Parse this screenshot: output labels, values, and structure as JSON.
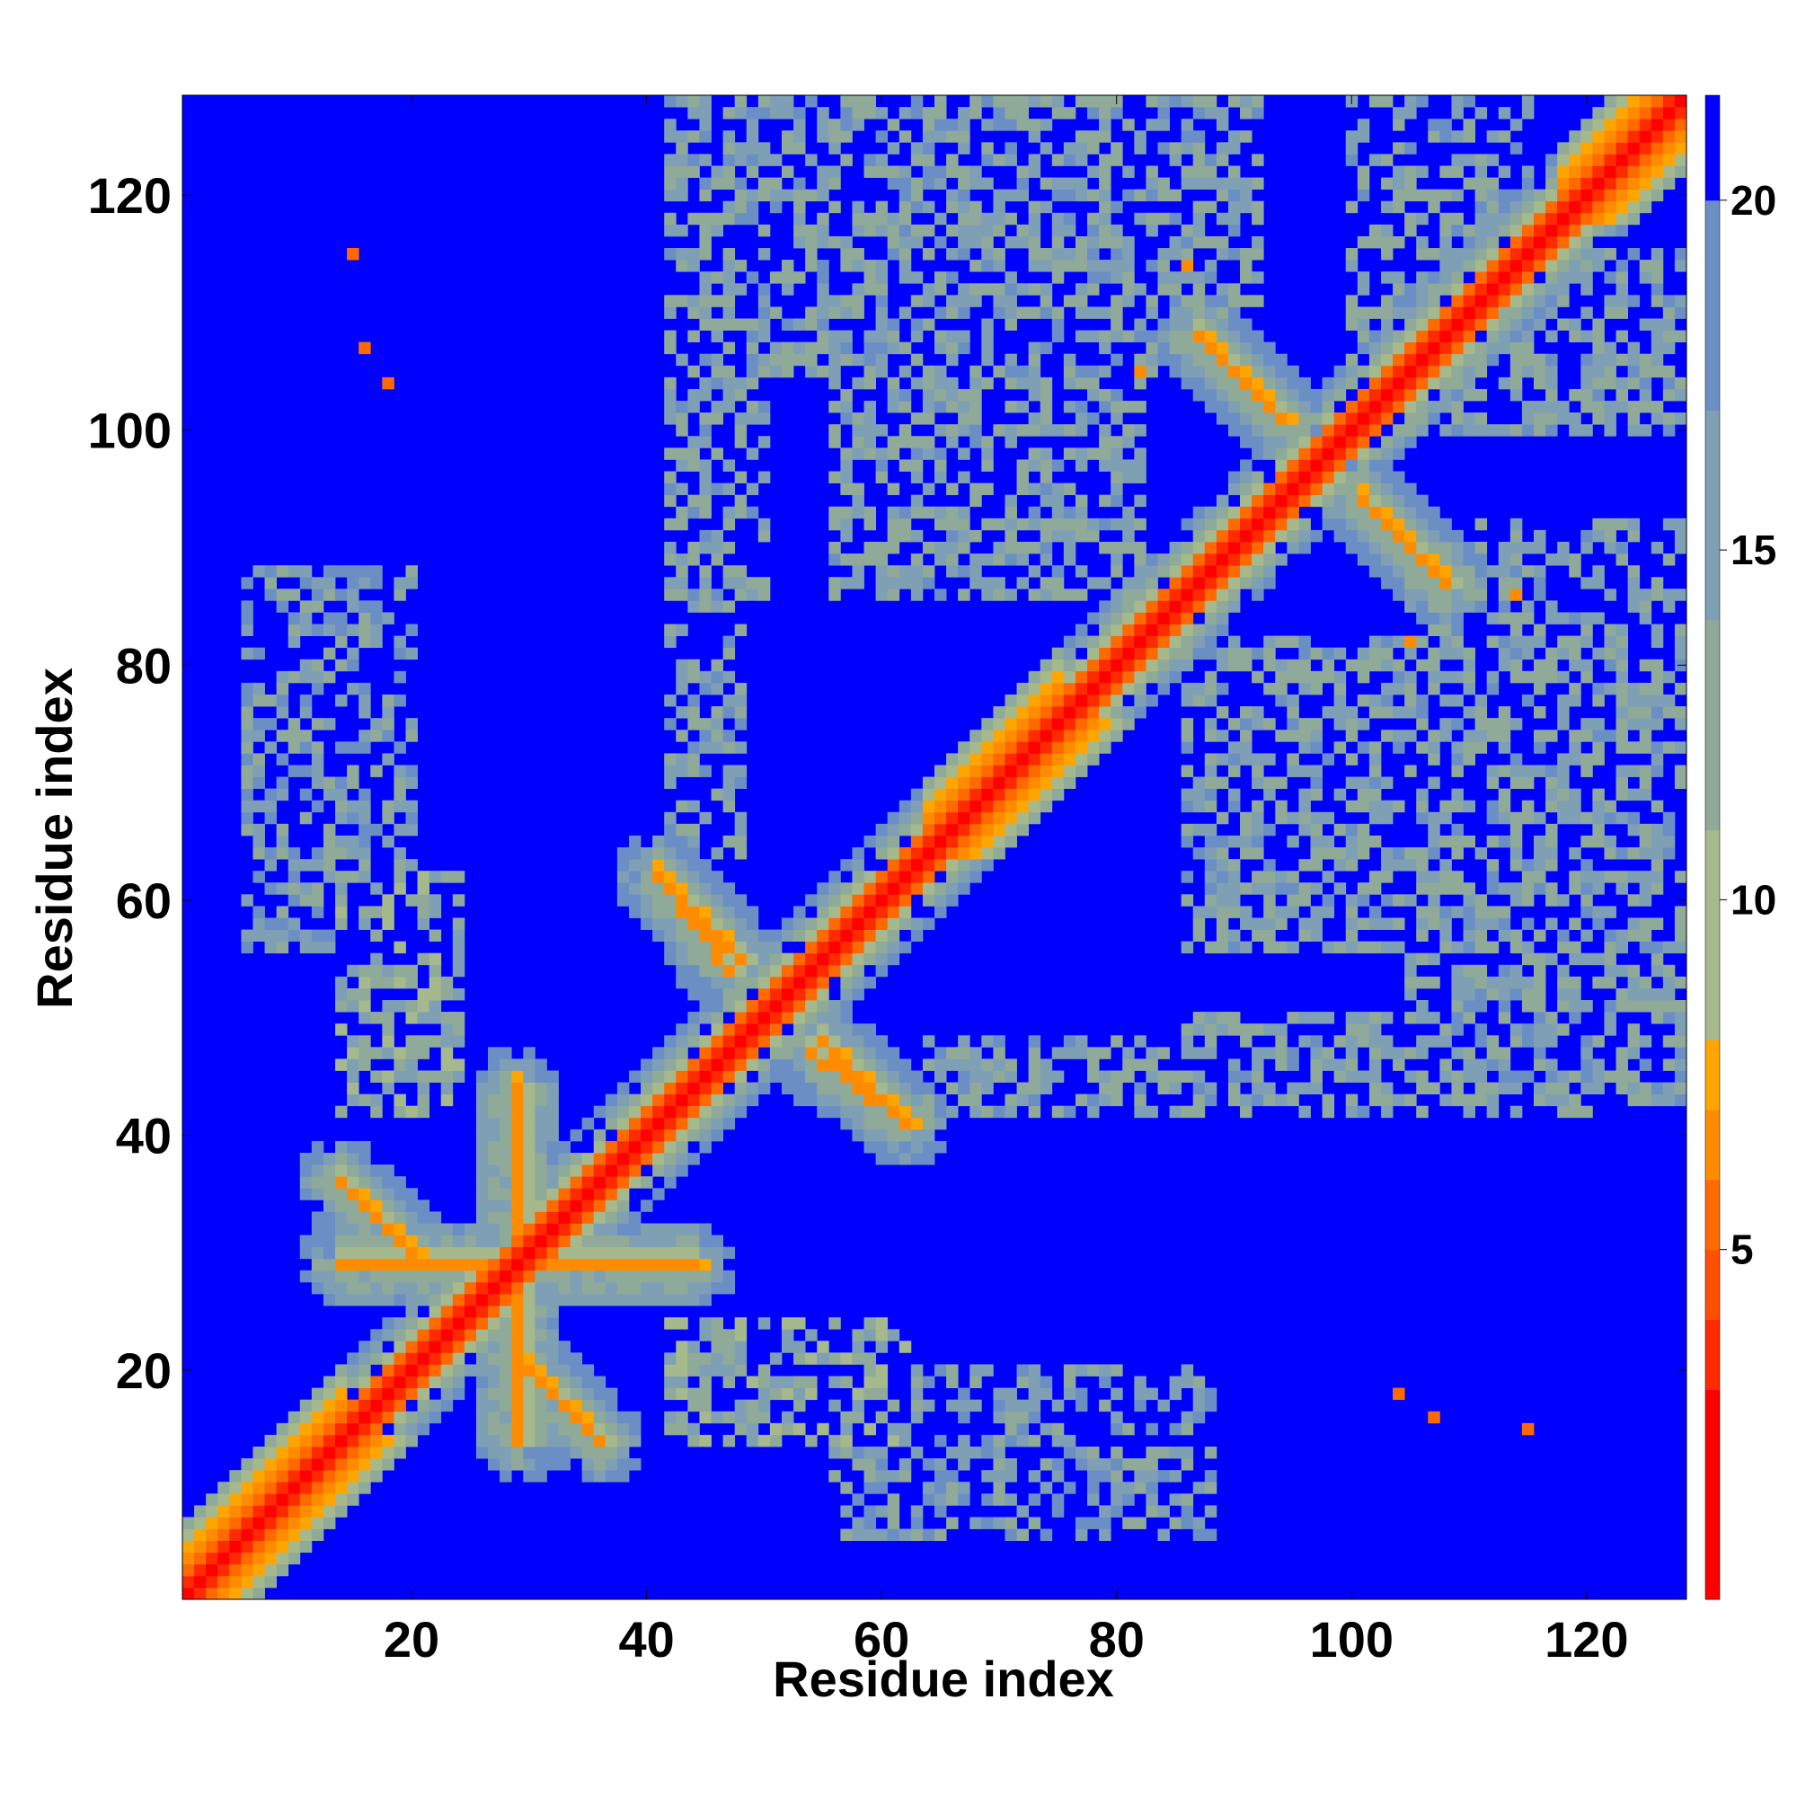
{
  "chart_data": {
    "type": "heatmap",
    "title": "",
    "xlabel": "Residue index",
    "ylabel": "Residue index",
    "xlim": [
      1,
      128
    ],
    "ylim": [
      1,
      128
    ],
    "n_residues": 128,
    "x_ticks": [
      20,
      40,
      60,
      80,
      100,
      120
    ],
    "y_ticks": [
      20,
      40,
      60,
      80,
      100,
      120
    ],
    "colorbar": {
      "ticks": [
        5,
        10,
        15,
        20
      ],
      "range": [
        0,
        21.5
      ],
      "levels": [
        {
          "min": 0,
          "max": 3,
          "color": "#ff0000"
        },
        {
          "min": 3,
          "max": 4,
          "color": "#ff2a00"
        },
        {
          "min": 4,
          "max": 5,
          "color": "#ff4f00"
        },
        {
          "min": 5,
          "max": 6,
          "color": "#ff6a00"
        },
        {
          "min": 6,
          "max": 7,
          "color": "#ff8c00"
        },
        {
          "min": 7,
          "max": 8,
          "color": "#ffa500"
        },
        {
          "min": 8,
          "max": 11,
          "color": "#a5b98c"
        },
        {
          "min": 11,
          "max": 14,
          "color": "#8faa99"
        },
        {
          "min": 14,
          "max": 17,
          "color": "#7f9fb4"
        },
        {
          "min": 17,
          "max": 20,
          "color": "#6b8fc4"
        },
        {
          "min": 20,
          "max": 21.5,
          "color": "#0000ff"
        }
      ]
    },
    "background_color": "#0000ff",
    "diagonal_bands": [
      {
        "offset": 0,
        "value": 1.5
      },
      {
        "offset": 1,
        "value": 3.5
      },
      {
        "offset": 2,
        "value": 5.5
      },
      {
        "offset": 3,
        "value": 9
      },
      {
        "offset": 4,
        "value": 12
      },
      {
        "offset": 5,
        "value": 15
      },
      {
        "offset": 6,
        "value": 18
      }
    ],
    "helix_regions": [
      [
        1,
        14
      ],
      [
        64,
        75
      ],
      [
        118,
        128
      ]
    ],
    "strand_pairs": [
      {
        "a": [
          14,
          29
        ],
        "b": [
          44,
          29
        ],
        "value": 6.5,
        "direction": "anti"
      },
      {
        "a": [
          29,
          21
        ],
        "b": [
          36,
          14
        ],
        "value": 6.5,
        "direction": "anti"
      },
      {
        "a": [
          41,
          62
        ],
        "b": [
          48,
          55
        ],
        "value": 6.5,
        "direction": "anti"
      },
      {
        "a": [
          54,
          47
        ],
        "b": [
          62,
          41
        ],
        "value": 6.5,
        "direction": "anti"
      },
      {
        "a": [
          87,
          108
        ],
        "b": [
          94,
          101
        ],
        "value": 6.5,
        "direction": "anti"
      },
      {
        "a": [
          101,
          94
        ],
        "b": [
          108,
          87
        ],
        "value": 6.5,
        "direction": "anti"
      },
      {
        "a": [
          67,
          66
        ],
        "b": [
          75,
          74
        ],
        "value": 6.5,
        "direction": "parallel"
      }
    ],
    "isolated_contacts": [
      {
        "x": 15,
        "y": 115,
        "value": 5.5
      },
      {
        "x": 16,
        "y": 107,
        "value": 5.5
      },
      {
        "x": 18,
        "y": 104,
        "value": 5.5
      },
      {
        "x": 115,
        "y": 15,
        "value": 5.5
      },
      {
        "x": 107,
        "y": 16,
        "value": 5.5
      },
      {
        "x": 104,
        "y": 18,
        "value": 5.5
      },
      {
        "x": 86,
        "y": 114,
        "value": 6.5
      },
      {
        "x": 114,
        "y": 86,
        "value": 6.5
      },
      {
        "x": 82,
        "y": 105,
        "value": 6.5
      },
      {
        "x": 105,
        "y": 82,
        "value": 6.5
      }
    ],
    "contact_clouds": [
      {
        "x": [
          42,
          62
        ],
        "y": [
          14,
          24
        ],
        "value": 11
      },
      {
        "x": [
          14,
          24
        ],
        "y": [
          42,
          62
        ],
        "value": 11
      },
      {
        "x": [
          42,
          50
        ],
        "y": [
          86,
          126
        ],
        "value": 13
      },
      {
        "x": [
          86,
          126
        ],
        "y": [
          42,
          50
        ],
        "value": 13
      },
      {
        "x": [
          50,
          62
        ],
        "y": [
          105,
          126
        ],
        "value": 13
      },
      {
        "x": [
          105,
          126
        ],
        "y": [
          50,
          62
        ],
        "value": 13
      },
      {
        "x": [
          56,
          82
        ],
        "y": [
          86,
          112
        ],
        "value": 13
      },
      {
        "x": [
          86,
          112
        ],
        "y": [
          56,
          82
        ],
        "value": 13
      },
      {
        "x": [
          82,
          92
        ],
        "y": [
          110,
          128
        ],
        "value": 13
      },
      {
        "x": [
          110,
          128
        ],
        "y": [
          82,
          92
        ],
        "value": 13
      },
      {
        "x": [
          6,
          20
        ],
        "y": [
          56,
          88
        ],
        "value": 14
      },
      {
        "x": [
          56,
          88
        ],
        "y": [
          6,
          20
        ],
        "value": 14
      },
      {
        "x": [
          105,
          128
        ],
        "y": [
          62,
          90
        ],
        "value": 13
      },
      {
        "x": [
          62,
          90
        ],
        "y": [
          105,
          128
        ],
        "value": 13
      },
      {
        "x": [
          105,
          128
        ],
        "y": [
          42,
          60
        ],
        "value": 13
      },
      {
        "x": [
          42,
          60
        ],
        "y": [
          105,
          128
        ],
        "value": 13
      },
      {
        "x": [
          105,
          128
        ],
        "y": [
          100,
          115
        ],
        "value": 13
      },
      {
        "x": [
          100,
          115
        ],
        "y": [
          105,
          128
        ],
        "value": 13
      },
      {
        "x": [
          64,
          90
        ],
        "y": [
          42,
          48
        ],
        "value": 13
      },
      {
        "x": [
          42,
          48
        ],
        "y": [
          64,
          90
        ],
        "value": 13
      }
    ]
  }
}
